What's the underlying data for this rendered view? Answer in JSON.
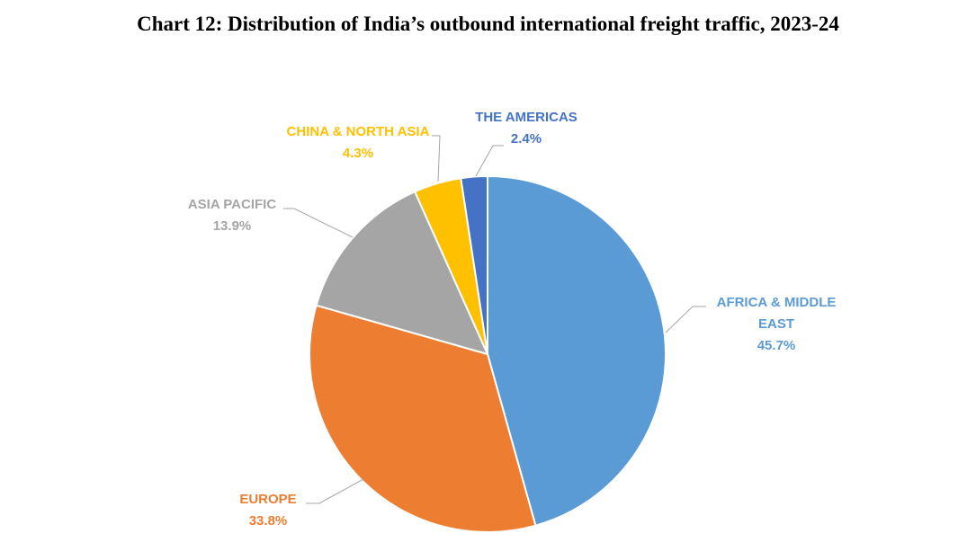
{
  "chart_data": {
    "type": "pie",
    "title": "Chart 12: Distribution of India’s outbound international freight traffic, 2023-24",
    "slices": [
      {
        "label": "AFRICA & MIDDLE EAST",
        "label_lines": [
          "AFRICA & MIDDLE",
          "EAST"
        ],
        "value": 45.7,
        "value_label": "45.7%",
        "color": "#5B9BD5",
        "label_color": "#5B9BD5"
      },
      {
        "label": "EUROPE",
        "label_lines": [
          "EUROPE"
        ],
        "value": 33.8,
        "value_label": "33.8%",
        "color": "#ED7D31",
        "label_color": "#ED7D31"
      },
      {
        "label": "ASIA PACIFIC",
        "label_lines": [
          "ASIA PACIFIC"
        ],
        "value": 13.9,
        "value_label": "13.9%",
        "color": "#A5A5A5",
        "label_color": "#A5A5A5"
      },
      {
        "label": "CHINA & NORTH ASIA",
        "label_lines": [
          "CHINA & NORTH ASIA"
        ],
        "value": 4.3,
        "value_label": "4.3%",
        "color": "#FFC000",
        "label_color": "#FFC000"
      },
      {
        "label": "THE AMERICAS",
        "label_lines": [
          "THE AMERICAS"
        ],
        "value": 2.4,
        "value_label": "2.4%",
        "color": "#4472C4",
        "label_color": "#4472C4"
      }
    ],
    "start_angle": "12 o'clock",
    "direction": "clockwise",
    "legend": "none"
  }
}
